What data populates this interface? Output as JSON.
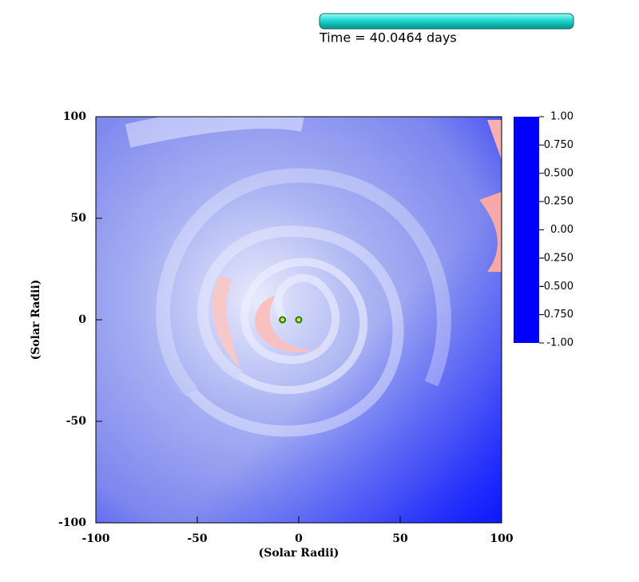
{
  "chart_data": {
    "type": "image",
    "title": "Time = 40.0464 days",
    "xlabel": "(Solar Radii)",
    "ylabel": "(Solar Radii)",
    "xlim": [
      -100,
      100
    ],
    "ylim": [
      -100,
      100
    ],
    "xticks": [
      -100,
      -50,
      0,
      50,
      100
    ],
    "yticks": [
      -100,
      -50,
      0,
      50,
      100
    ],
    "points": {
      "x": [
        -8,
        0
      ],
      "y": [
        0,
        0
      ],
      "color": "#1a7a1a"
    },
    "colorbar": {
      "lim": [
        -1,
        1
      ],
      "colors": [
        "#0000ff",
        "#ffffff",
        "#ff0000"
      ],
      "ticks": [
        {
          "value": 1,
          "label": "1.00"
        },
        {
          "value": 0.75,
          "label": "0.750"
        },
        {
          "value": 0.5,
          "label": "0.500"
        },
        {
          "value": 0.25,
          "label": "0.250"
        },
        {
          "value": 0,
          "label": "0.00"
        },
        {
          "value": -0.25,
          "label": "-0.250"
        },
        {
          "value": -0.5,
          "label": "-0.500"
        },
        {
          "value": -0.75,
          "label": "-0.750"
        },
        {
          "value": -1,
          "label": "-1.00"
        }
      ]
    }
  }
}
